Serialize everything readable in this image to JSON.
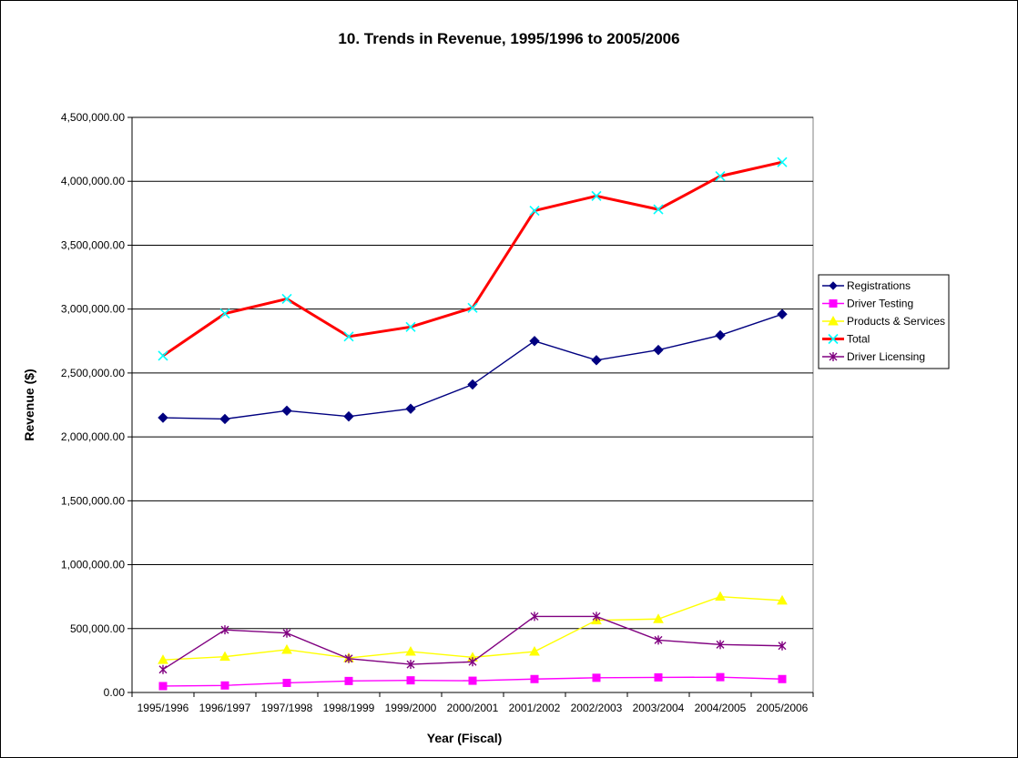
{
  "chart_data": {
    "type": "line",
    "title": "10. Trends in Revenue, 1995/1996 to 2005/2006",
    "xlabel": "Year (Fiscal)",
    "ylabel": "Revenue ($)",
    "ylim": [
      0,
      4500000
    ],
    "ytick_step": 500000,
    "ytick_labels": [
      "0.00",
      "500,000.00",
      "1,000,000.00",
      "1,500,000.00",
      "2,000,000.00",
      "2,500,000.00",
      "3,000,000.00",
      "3,500,000.00",
      "4,000,000.00",
      "4,500,000.00"
    ],
    "grid": true,
    "legend_position": "right",
    "categories": [
      "1995/1996",
      "1996/1997",
      "1997/1998",
      "1998/1999",
      "1999/2000",
      "2000/2001",
      "2001/2002",
      "2002/2003",
      "2003/2004",
      "2004/2005",
      "2005/2006"
    ],
    "series": [
      {
        "name": "Registrations",
        "color": "#000080",
        "marker": "diamond",
        "line_color": "#000080",
        "values": [
          2150000,
          2140000,
          2205000,
          2160000,
          2220000,
          2410000,
          2750000,
          2600000,
          2680000,
          2795000,
          2960000
        ]
      },
      {
        "name": "Driver Testing",
        "color": "#ff00ff",
        "marker": "square",
        "line_color": "#ff00ff",
        "values": [
          50000,
          55000,
          75000,
          90000,
          95000,
          92000,
          105000,
          115000,
          118000,
          120000,
          105000
        ]
      },
      {
        "name": "Products & Services",
        "color": "#ffff00",
        "marker": "triangle",
        "line_color": "#ffff00",
        "values": [
          255000,
          280000,
          335000,
          270000,
          320000,
          275000,
          320000,
          565000,
          575000,
          750000,
          720000
        ]
      },
      {
        "name": "Total",
        "color": "#00ffff",
        "marker": "x",
        "line_color": "#ff0000",
        "values": [
          2635000,
          2965000,
          3080000,
          2785000,
          2860000,
          3010000,
          3770000,
          3885000,
          3780000,
          4040000,
          4150000
        ]
      },
      {
        "name": "Driver Licensing",
        "color": "#800080",
        "marker": "star",
        "line_color": "#800080",
        "values": [
          180000,
          490000,
          465000,
          265000,
          220000,
          240000,
          595000,
          595000,
          410000,
          375000,
          365000
        ]
      }
    ]
  }
}
